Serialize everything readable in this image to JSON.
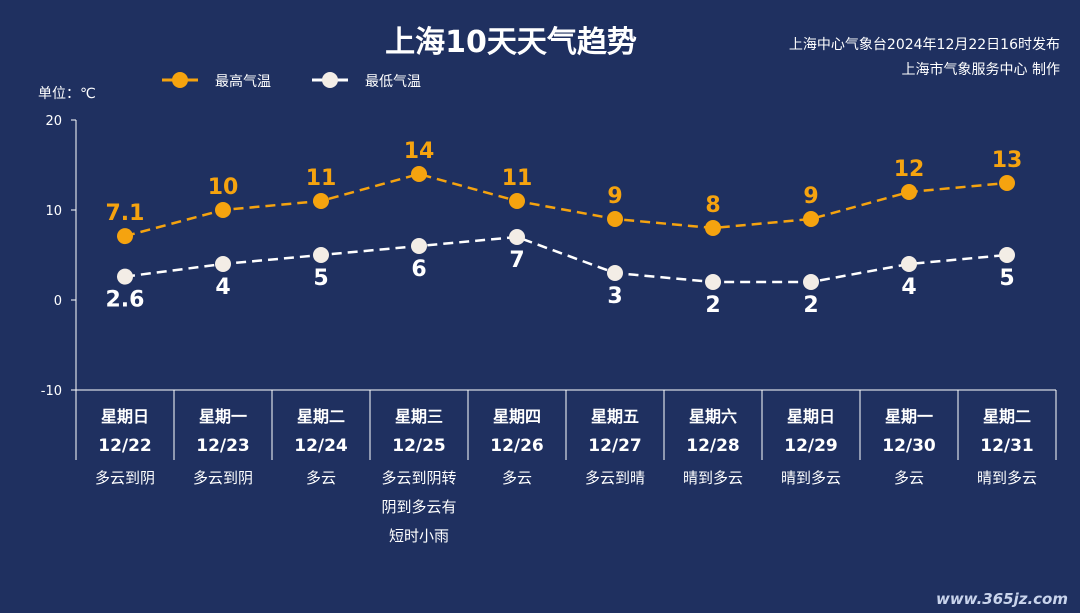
{
  "header": {
    "title": "上海10天天气趋势",
    "source_line1": "上海中心气象台2024年12月22日16时发布",
    "source_line2": "上海市气象服务中心 制作",
    "unit_label": "单位：℃",
    "watermark": "www.365jz.com"
  },
  "colors": {
    "background": "#1f3060",
    "high": "#f5a30f",
    "low": "#ffffff",
    "axis": "#ffffff"
  },
  "chart_data": {
    "type": "line",
    "title": "上海10天天气趋势",
    "ylabel": "单位：℃",
    "ylim": [
      -10,
      20
    ],
    "yticks": [
      20,
      10,
      0,
      -10
    ],
    "grid": false,
    "legend_position": "top-left",
    "categories": [
      "12/22",
      "12/23",
      "12/24",
      "12/25",
      "12/26",
      "12/27",
      "12/28",
      "12/29",
      "12/30",
      "12/31"
    ],
    "weekdays": [
      "星期日",
      "星期一",
      "星期二",
      "星期三",
      "星期四",
      "星期五",
      "星期六",
      "星期日",
      "星期一",
      "星期二"
    ],
    "weather": [
      [
        "多云到阴"
      ],
      [
        "多云到阴"
      ],
      [
        "多云"
      ],
      [
        "多云到阴转",
        "阴到多云有",
        "短时小雨"
      ],
      [
        "多云"
      ],
      [
        "多云到晴"
      ],
      [
        "晴到多云"
      ],
      [
        "晴到多云"
      ],
      [
        "多云"
      ],
      [
        "晴到多云"
      ]
    ],
    "series": [
      {
        "name": "最高气温",
        "values": [
          7.1,
          10,
          11,
          14,
          11,
          9,
          8,
          9,
          12,
          13
        ],
        "labels": [
          "7.1",
          "10",
          "11",
          "14",
          "11",
          "9",
          "8",
          "9",
          "12",
          "13"
        ]
      },
      {
        "name": "最低气温",
        "values": [
          2.6,
          4,
          5,
          6,
          7,
          3,
          2,
          2,
          4,
          5
        ],
        "labels": [
          "2.6",
          "4",
          "5",
          "6",
          "7",
          "3",
          "2",
          "2",
          "4",
          "5"
        ]
      }
    ]
  }
}
